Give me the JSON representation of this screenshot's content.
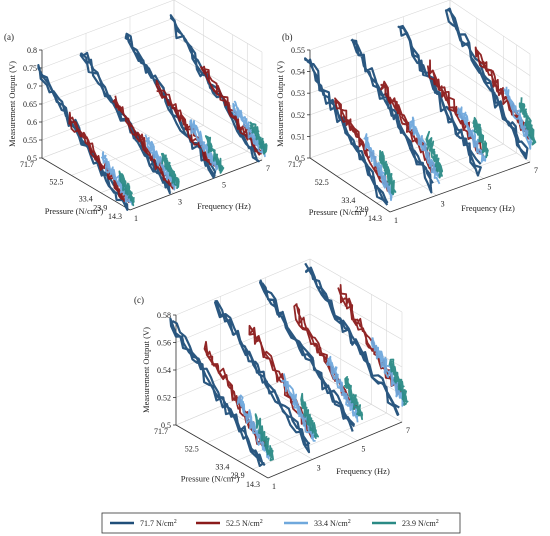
{
  "chart_data": [
    {
      "panel": "(a)",
      "type": "line",
      "zlabel": "Measurement Output (V)",
      "xlabel": "Pressure (N/cm²)",
      "ylabel": "Frequency (Hz)",
      "z_ticks": [
        "0.5",
        "0.55",
        "0.6",
        "0.65",
        "0.7",
        "0.75",
        "0.8"
      ],
      "pressure_ticks": [
        "71.7",
        "52.5",
        "33.4",
        "23.9",
        "14.3"
      ],
      "frequency_ticks": [
        "1",
        "3",
        "5",
        "7"
      ],
      "zlim": [
        0.5,
        0.8
      ],
      "frequency_groups": [
        1,
        3,
        5,
        7
      ],
      "series": [
        {
          "name": "71.7 N/cm²",
          "color": "#1f4e79",
          "pressure_range": [
            14.3,
            71.7
          ],
          "output_range": [
            0.51,
            0.75
          ]
        },
        {
          "name": "52.5 N/cm²",
          "color": "#8b1a1a",
          "pressure_range": [
            14.3,
            52.5
          ],
          "output_range": [
            0.52,
            0.66
          ]
        },
        {
          "name": "33.4 N/cm²",
          "color": "#6fa8dc",
          "pressure_range": [
            14.3,
            33.4
          ],
          "output_range": [
            0.52,
            0.6
          ]
        },
        {
          "name": "23.9 N/cm²",
          "color": "#2a8a85",
          "pressure_range": [
            14.3,
            23.9
          ],
          "output_range": [
            0.52,
            0.57
          ]
        }
      ]
    },
    {
      "panel": "(b)",
      "type": "line",
      "zlabel": "Measurement Output (V)",
      "xlabel": "Pressure (N/cm²)",
      "ylabel": "Frequency (Hz)",
      "z_ticks": [
        "0.5",
        "0.51",
        "0.52",
        "0.53",
        "0.54",
        "0.55"
      ],
      "pressure_ticks": [
        "71.7",
        "52.5",
        "33.4",
        "23.9",
        "14.3"
      ],
      "frequency_ticks": [
        "1",
        "3",
        "5",
        "7"
      ],
      "zlim": [
        0.5,
        0.55
      ],
      "frequency_groups": [
        1,
        3,
        5,
        7
      ],
      "series": [
        {
          "name": "71.7 N/cm²",
          "color": "#1f4e79",
          "pressure_range": [
            14.3,
            71.7
          ],
          "output_range": [
            0.505,
            0.547
          ]
        },
        {
          "name": "52.5 N/cm²",
          "color": "#8b1a1a",
          "pressure_range": [
            14.3,
            52.5
          ],
          "output_range": [
            0.512,
            0.535
          ]
        },
        {
          "name": "33.4 N/cm²",
          "color": "#6fa8dc",
          "pressure_range": [
            14.3,
            33.4
          ],
          "output_range": [
            0.508,
            0.525
          ]
        },
        {
          "name": "23.9 N/cm²",
          "color": "#2a8a85",
          "pressure_range": [
            14.3,
            23.9
          ],
          "output_range": [
            0.51,
            0.522
          ]
        }
      ]
    },
    {
      "panel": "(c)",
      "type": "line",
      "zlabel": "Measurement Output (V)",
      "xlabel": "Pressure (N/cm²)",
      "ylabel": "Frequency (Hz)",
      "z_ticks": [
        "0.5",
        "0.52",
        "0.54",
        "0.56",
        "0.58"
      ],
      "pressure_ticks": [
        "71.7",
        "52.5",
        "33.4",
        "23.9",
        "14.3"
      ],
      "frequency_ticks": [
        "1",
        "3",
        "5",
        "7"
      ],
      "zlim": [
        0.5,
        0.58
      ],
      "frequency_groups": [
        1,
        3,
        5,
        7
      ],
      "series": [
        {
          "name": "71.7 N/cm²",
          "color": "#1f4e79",
          "pressure_range": [
            14.3,
            71.7
          ],
          "output_range": [
            0.51,
            0.575
          ]
        },
        {
          "name": "52.5 N/cm²",
          "color": "#8b1a1a",
          "pressure_range": [
            14.3,
            52.5
          ],
          "output_range": [
            0.52,
            0.57
          ]
        },
        {
          "name": "33.4 N/cm²",
          "color": "#6fa8dc",
          "pressure_range": [
            14.3,
            33.4
          ],
          "output_range": [
            0.515,
            0.545
          ]
        },
        {
          "name": "23.9 N/cm²",
          "color": "#2a8a85",
          "pressure_range": [
            14.3,
            23.9
          ],
          "output_range": [
            0.515,
            0.535
          ]
        }
      ]
    }
  ],
  "legend": {
    "entries": [
      {
        "label": "71.7 N/cm²",
        "color": "#1f4e79"
      },
      {
        "label": "52.5 N/cm²",
        "color": "#8b1a1a"
      },
      {
        "label": "33.4 N/cm²",
        "color": "#6fa8dc"
      },
      {
        "label": "23.9 N/cm²",
        "color": "#2a8a85"
      }
    ]
  }
}
